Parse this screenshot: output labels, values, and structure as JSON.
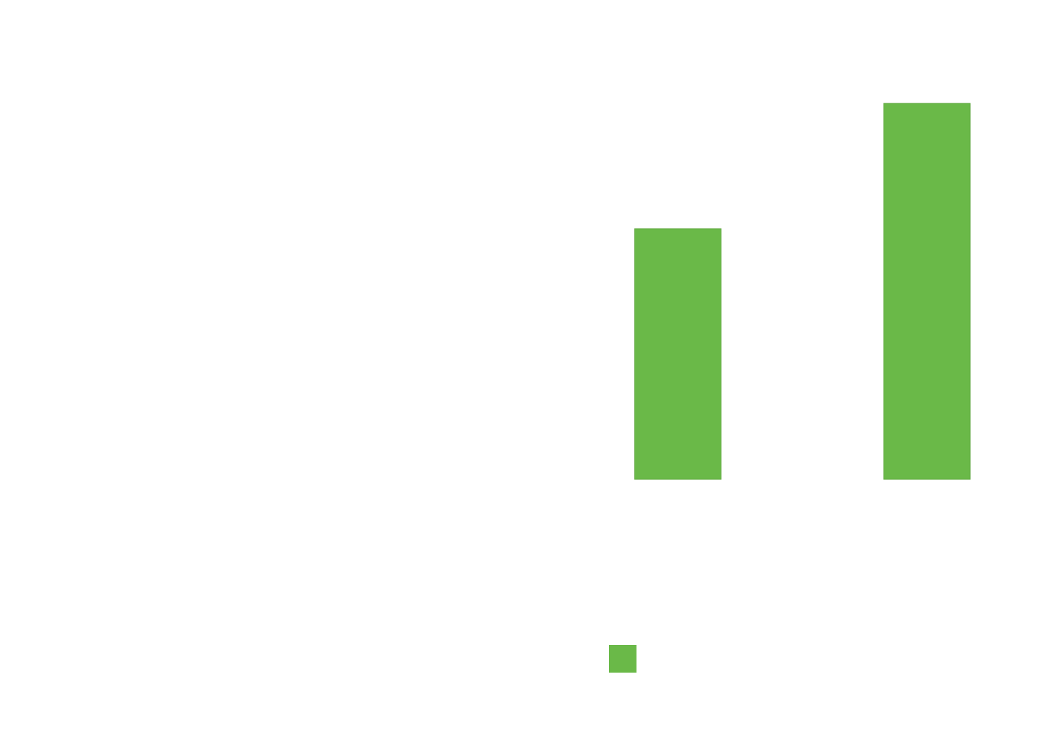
{
  "colors": {
    "background": "#ffffff",
    "bar": "#6ab948"
  },
  "chart_data": {
    "type": "bar",
    "categories": [
      "",
      "",
      ""
    ],
    "values": [
      0,
      60,
      90
    ],
    "ylim": [
      0,
      100
    ],
    "grid": false,
    "legend": {
      "position": "bottom-center",
      "entries": [
        {
          "label": "",
          "color": "#6ab948"
        }
      ]
    },
    "series": [
      {
        "values": [
          0,
          60,
          90
        ],
        "color": "#6ab948"
      }
    ]
  }
}
